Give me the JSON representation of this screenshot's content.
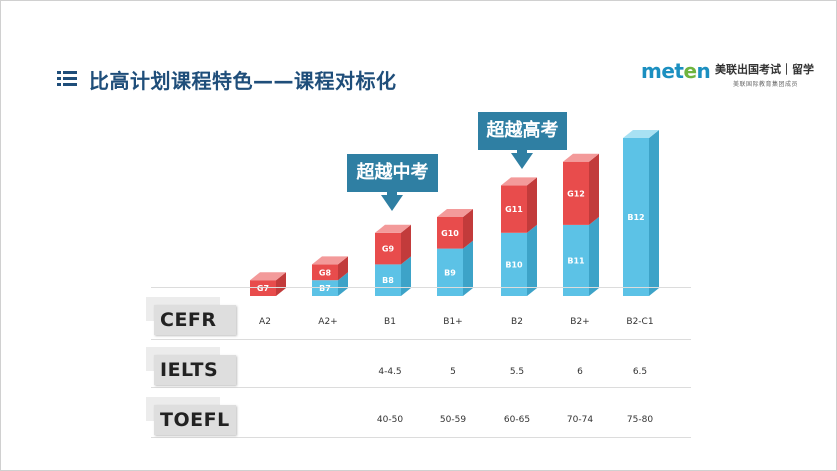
{
  "header": {
    "title": "比高计划课程特色——课程对标化",
    "menu_icon": "list-icon"
  },
  "logo": {
    "brand_part1": "met",
    "brand_part2": "e",
    "brand_part3": "n",
    "chinese": "美联出国考试｜留学",
    "subtitle": "美联国际教育集团成员"
  },
  "callouts": {
    "surpass_zhongkao": "超越中考",
    "surpass_gaokao": "超越高考"
  },
  "rows": {
    "cefr": {
      "label": "CEFR",
      "values": [
        "A2",
        "A2+",
        "B1",
        "B1+",
        "B2",
        "B2+",
        "B2-C1"
      ]
    },
    "ielts": {
      "label": "IELTS",
      "values": [
        "",
        "",
        "4-4.5",
        "5",
        "5.5",
        "6",
        "6.5"
      ]
    },
    "toefl": {
      "label": "TOEFL",
      "values": [
        "",
        "",
        "40-50",
        "50-59",
        "60-65",
        "70-74",
        "75-80"
      ]
    }
  },
  "colors": {
    "red": "#e84c4c",
    "blue": "#5cc2e6",
    "callout": "#2f7fa3",
    "title": "#1f4e7a"
  },
  "chart_data": {
    "type": "bar",
    "stacked": true,
    "categories": [
      "A2",
      "A2+",
      "B1",
      "B1+",
      "B2",
      "B2+",
      "B2-C1"
    ],
    "series": [
      {
        "name": "blue",
        "labels": [
          "",
          "B7",
          "B8",
          "B9",
          "B10",
          "B11",
          "B12"
        ],
        "values": [
          0,
          1,
          2,
          3,
          4,
          4.5,
          10
        ]
      },
      {
        "name": "red",
        "labels": [
          "G7",
          "G8",
          "G9",
          "G10",
          "G11",
          "G12",
          ""
        ],
        "values": [
          1,
          1,
          2,
          2,
          3,
          4,
          0
        ]
      }
    ]
  }
}
